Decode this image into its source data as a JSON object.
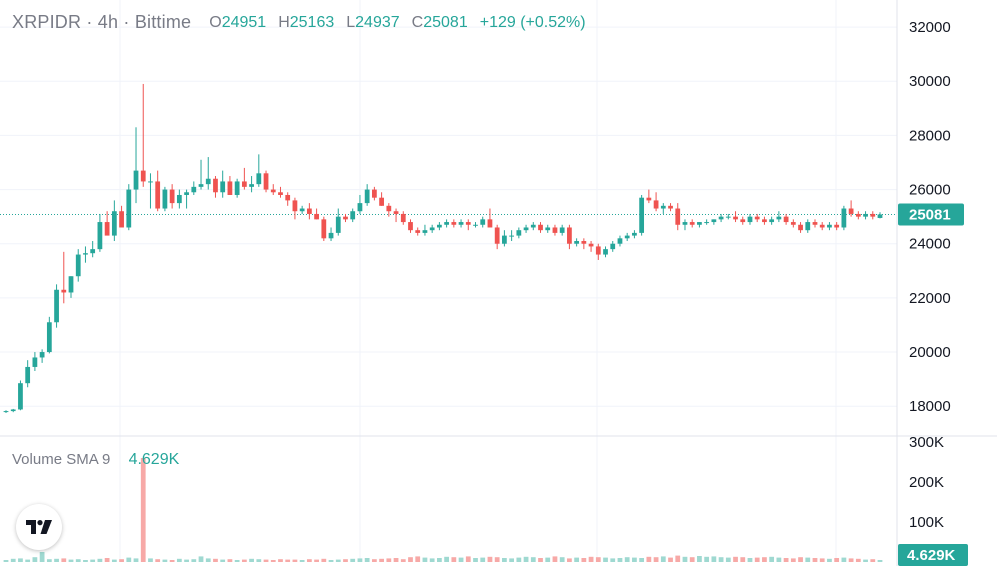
{
  "header": {
    "symbol_line": "XRPIDR · 4h · Bittime",
    "ohlc": [
      {
        "key": "O",
        "value": "24951"
      },
      {
        "key": "H",
        "value": "25163"
      },
      {
        "key": "L",
        "value": "24937"
      },
      {
        "key": "C",
        "value": "25081"
      },
      {
        "key": "",
        "value": "+129 (+0.52%)"
      }
    ]
  },
  "volume_pane": {
    "label": "Volume SMA 9",
    "value": "4.629K"
  },
  "logo": {
    "icon": "tradingview-logo-icon"
  },
  "colors": {
    "up": "#26a69a",
    "down": "#ef5350",
    "up_volume": "#9fd9d1",
    "down_volume": "#f7a9a7",
    "grid": "#f0f3fa",
    "axis_text": "#131722"
  },
  "chart_data": {
    "type": "candlestick",
    "y_ticks": [
      "32000",
      "30000",
      "28000",
      "26000",
      "24000",
      "22000",
      "20000",
      "18000"
    ],
    "ylim": [
      16900,
      33000
    ],
    "last_price_label": "25081",
    "last_price": 25081,
    "volume_ticks": [
      "300K",
      "200K",
      "100K"
    ],
    "volume_ylim": [
      0,
      300000
    ],
    "volume_label": "4.629K",
    "candles": [
      [
        17800,
        17850,
        17750,
        17820
      ],
      [
        17820,
        17900,
        17780,
        17880
      ],
      [
        17880,
        18950,
        17850,
        18850
      ],
      [
        18850,
        19700,
        18700,
        19450
      ],
      [
        19450,
        20000,
        19300,
        19800
      ],
      [
        19800,
        20100,
        19600,
        20000
      ],
      [
        20000,
        21300,
        19950,
        21100
      ],
      [
        21100,
        22500,
        20900,
        22300
      ],
      [
        22300,
        23700,
        21800,
        22200
      ],
      [
        22200,
        22800,
        22000,
        22800
      ],
      [
        22800,
        23800,
        22600,
        23600
      ],
      [
        23600,
        23900,
        23300,
        23650
      ],
      [
        23650,
        24100,
        23500,
        23800
      ],
      [
        23800,
        25100,
        23700,
        24800
      ],
      [
        24800,
        25200,
        24400,
        24300
      ],
      [
        24300,
        25600,
        24100,
        25200
      ],
      [
        25200,
        25400,
        24700,
        24600
      ],
      [
        24600,
        26200,
        24500,
        26000
      ],
      [
        26000,
        28300,
        25500,
        26700
      ],
      [
        26700,
        29900,
        26100,
        26300
      ],
      [
        26300,
        26600,
        25300,
        26300
      ],
      [
        26300,
        26700,
        25200,
        25300
      ],
      [
        25300,
        26100,
        25200,
        26000
      ],
      [
        26000,
        26200,
        25300,
        25500
      ],
      [
        25500,
        26000,
        25300,
        25800
      ],
      [
        25800,
        26000,
        25300,
        25900
      ],
      [
        25900,
        26300,
        25800,
        26100
      ],
      [
        26100,
        27100,
        26000,
        26200
      ],
      [
        26200,
        27200,
        26000,
        26400
      ],
      [
        26400,
        26500,
        25700,
        25900
      ],
      [
        25900,
        26700,
        25700,
        26300
      ],
      [
        26300,
        26500,
        25800,
        25800
      ],
      [
        25800,
        26400,
        25700,
        26300
      ],
      [
        26300,
        26800,
        26000,
        26100
      ],
      [
        26100,
        26500,
        25900,
        26200
      ],
      [
        26200,
        27300,
        26100,
        26600
      ],
      [
        26600,
        26700,
        25900,
        26000
      ],
      [
        26000,
        26200,
        25800,
        25900
      ],
      [
        25900,
        26100,
        25700,
        25800
      ],
      [
        25800,
        25900,
        25400,
        25600
      ],
      [
        25600,
        25700,
        24900,
        25200
      ],
      [
        25200,
        25400,
        25100,
        25300
      ],
      [
        25300,
        25500,
        24900,
        25100
      ],
      [
        25100,
        25300,
        24900,
        24900
      ],
      [
        24900,
        25000,
        24100,
        24200
      ],
      [
        24200,
        24600,
        24100,
        24400
      ],
      [
        24400,
        25300,
        24300,
        25000
      ],
      [
        25000,
        25100,
        24800,
        24900
      ],
      [
        24900,
        25300,
        24800,
        25200
      ],
      [
        25200,
        25800,
        25100,
        25500
      ],
      [
        25500,
        26200,
        25400,
        26000
      ],
      [
        26000,
        26100,
        25600,
        25700
      ],
      [
        25700,
        25900,
        25400,
        25400
      ],
      [
        25400,
        25500,
        25000,
        25200
      ],
      [
        25200,
        25300,
        24800,
        25100
      ],
      [
        25100,
        25200,
        24700,
        24800
      ],
      [
        24800,
        24900,
        24400,
        24500
      ],
      [
        24500,
        24600,
        24300,
        24400
      ],
      [
        24400,
        24700,
        24300,
        24500
      ],
      [
        24500,
        24700,
        24400,
        24600
      ],
      [
        24600,
        24800,
        24500,
        24700
      ],
      [
        24700,
        24900,
        24600,
        24800
      ],
      [
        24800,
        24900,
        24600,
        24700
      ],
      [
        24700,
        24900,
        24600,
        24800
      ],
      [
        24800,
        24900,
        24500,
        24700
      ],
      [
        24700,
        24800,
        24600,
        24700
      ],
      [
        24700,
        25000,
        24600,
        24900
      ],
      [
        24900,
        25300,
        24700,
        24600
      ],
      [
        24600,
        24700,
        23800,
        24000
      ],
      [
        24000,
        24500,
        23900,
        24300
      ],
      [
        24300,
        24500,
        24100,
        24300
      ],
      [
        24300,
        24600,
        24200,
        24500
      ],
      [
        24500,
        24700,
        24400,
        24600
      ],
      [
        24600,
        24800,
        24500,
        24700
      ],
      [
        24700,
        24800,
        24400,
        24500
      ],
      [
        24500,
        24700,
        24400,
        24600
      ],
      [
        24600,
        24700,
        24300,
        24400
      ],
      [
        24400,
        24700,
        24300,
        24600
      ],
      [
        24600,
        24700,
        23800,
        24000
      ],
      [
        24000,
        24200,
        23900,
        24100
      ],
      [
        24100,
        24200,
        23800,
        24000
      ],
      [
        24000,
        24100,
        23700,
        23900
      ],
      [
        23900,
        24000,
        23400,
        23600
      ],
      [
        23600,
        23900,
        23500,
        23800
      ],
      [
        23800,
        24100,
        23700,
        24000
      ],
      [
        24000,
        24300,
        23900,
        24200
      ],
      [
        24200,
        24400,
        24100,
        24300
      ],
      [
        24300,
        24500,
        24200,
        24400
      ],
      [
        24400,
        25800,
        24300,
        25700
      ],
      [
        25700,
        26000,
        25500,
        25600
      ],
      [
        25600,
        25900,
        25200,
        25300
      ],
      [
        25300,
        25500,
        25100,
        25400
      ],
      [
        25400,
        25500,
        25200,
        25300
      ],
      [
        25300,
        25500,
        24500,
        24700
      ],
      [
        24700,
        24900,
        24500,
        24800
      ],
      [
        24800,
        24900,
        24600,
        24700
      ],
      [
        24700,
        24800,
        24600,
        24800
      ],
      [
        24800,
        24900,
        24700,
        24800
      ],
      [
        24800,
        24900,
        24700,
        24900
      ],
      [
        24900,
        25100,
        24800,
        25000
      ],
      [
        25000,
        25100,
        24900,
        25000
      ],
      [
        25000,
        25200,
        24800,
        24900
      ],
      [
        24900,
        25000,
        24700,
        24800
      ],
      [
        24800,
        25100,
        24700,
        25000
      ],
      [
        25000,
        25100,
        24800,
        24900
      ],
      [
        24900,
        25000,
        24700,
        24800
      ],
      [
        24800,
        25000,
        24700,
        24900
      ],
      [
        24900,
        25200,
        24800,
        25000
      ],
      [
        25000,
        25100,
        24700,
        24800
      ],
      [
        24800,
        24900,
        24600,
        24700
      ],
      [
        24700,
        24800,
        24400,
        24500
      ],
      [
        24500,
        24900,
        24400,
        24800
      ],
      [
        24800,
        24900,
        24600,
        24700
      ],
      [
        24700,
        24800,
        24500,
        24600
      ],
      [
        24600,
        24800,
        24500,
        24700
      ],
      [
        24700,
        24800,
        24500,
        24600
      ],
      [
        24600,
        25400,
        24500,
        25300
      ],
      [
        25300,
        25600,
        25000,
        25100
      ],
      [
        25100,
        25200,
        24900,
        25000
      ],
      [
        25000,
        25200,
        24900,
        25100
      ],
      [
        25100,
        25200,
        24900,
        25000
      ],
      [
        24951,
        25163,
        24937,
        25081
      ]
    ],
    "volumes": [
      5000,
      8000,
      9000,
      6000,
      12000,
      25000,
      7000,
      8000,
      9000,
      6000,
      7000,
      5000,
      6000,
      8000,
      10000,
      6000,
      7000,
      11000,
      9000,
      260000,
      9000,
      7000,
      6000,
      5000,
      8000,
      6000,
      7000,
      14000,
      9000,
      8000,
      6000,
      7000,
      5000,
      6000,
      8000,
      7000,
      6000,
      5000,
      7000,
      6000,
      6000,
      5000,
      7000,
      6000,
      8000,
      5000,
      6000,
      7000,
      8000,
      9000,
      10000,
      7000,
      8000,
      9000,
      10000,
      7000,
      12000,
      14000,
      11000,
      9000,
      10000,
      13000,
      12000,
      11000,
      14000,
      10000,
      11000,
      13000,
      12000,
      10000,
      9000,
      11000,
      13000,
      12000,
      10000,
      11000,
      14000,
      12000,
      9000,
      11000,
      10000,
      13000,
      12000,
      11000,
      9000,
      10000,
      12000,
      11000,
      10000,
      13000,
      12000,
      14000,
      11000,
      16000,
      13000,
      12000,
      15000,
      13000,
      14000,
      12000,
      11000,
      13000,
      12000,
      10000,
      11000,
      12000,
      13000,
      11000,
      10000,
      9000,
      12000,
      11000,
      10000,
      9000,
      8000,
      10000,
      11000,
      9000,
      8000,
      6000,
      7000,
      5000
    ]
  }
}
